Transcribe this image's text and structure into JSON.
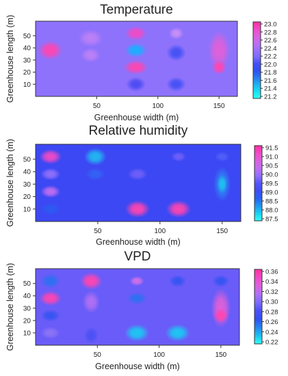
{
  "chart_data": [
    {
      "type": "heatmap",
      "title": "Temperature",
      "xlabel": "Greenhouse width (m)",
      "ylabel": "Greenhouse length (m)",
      "xlim": [
        0,
        165
      ],
      "ylim": [
        0,
        62
      ],
      "xticks": [
        50,
        100,
        150
      ],
      "yticks": [
        10,
        20,
        30,
        40,
        50
      ],
      "colorbar": {
        "ticks": [
          "23.0",
          "22.8",
          "22.6",
          "22.4",
          "22.2",
          "22.0",
          "21.8",
          "21.6",
          "21.4",
          "21.2"
        ],
        "colors": [
          "#ff2fa2",
          "#f04ac6",
          "#dc60e0",
          "#c06ef0",
          "#9d70fb",
          "#7c6cfd",
          "#4550f5",
          "#3050f0",
          "#2878f0",
          "#20b0f0",
          "#18e0f0",
          "#30fff8"
        ]
      },
      "background": "#8e72fc",
      "blobs": [
        {
          "x": 12,
          "y": 38,
          "rx": 10,
          "ry": 8,
          "color": "#ff45b0"
        },
        {
          "x": 45,
          "y": 48,
          "rx": 10,
          "ry": 7,
          "color": "#bd80f6"
        },
        {
          "x": 45,
          "y": 34,
          "rx": 8,
          "ry": 6,
          "color": "#bd80f6"
        },
        {
          "x": 82,
          "y": 52,
          "rx": 9,
          "ry": 6,
          "color": "#f04ac6"
        },
        {
          "x": 82,
          "y": 38,
          "rx": 9,
          "ry": 6,
          "color": "#18b0ff"
        },
        {
          "x": 82,
          "y": 24,
          "rx": 10,
          "ry": 6,
          "color": "#ff45b0"
        },
        {
          "x": 82,
          "y": 10,
          "rx": 8,
          "ry": 6,
          "color": "#4a4af2"
        },
        {
          "x": 115,
          "y": 52,
          "rx": 6,
          "ry": 5,
          "color": "#c890f6"
        },
        {
          "x": 115,
          "y": 36,
          "rx": 8,
          "ry": 7,
          "color": "#4250f4"
        },
        {
          "x": 115,
          "y": 10,
          "rx": 8,
          "ry": 6,
          "color": "#4250f4"
        },
        {
          "x": 150,
          "y": 38,
          "rx": 9,
          "ry": 16,
          "color": "#e060d8"
        },
        {
          "x": 150,
          "y": 24,
          "rx": 6,
          "ry": 6,
          "color": "#ff45b0"
        }
      ]
    },
    {
      "type": "heatmap",
      "title": "Relative humidity",
      "xlabel": "Greenhouse width (m)",
      "ylabel": "Greenhouse length (m)",
      "xlim": [
        0,
        165
      ],
      "ylim": [
        0,
        62
      ],
      "xticks": [
        50,
        100,
        150
      ],
      "yticks": [
        10,
        20,
        30,
        40,
        50
      ],
      "colorbar": {
        "ticks": [
          "91.5",
          "91.0",
          "90.5",
          "90.0",
          "89.5",
          "89.0",
          "88.5",
          "88.0",
          "87.5"
        ],
        "colors": [
          "#ff2fa2",
          "#f04ac6",
          "#dc60e0",
          "#c06ef0",
          "#9070fb",
          "#5555f8",
          "#3e4ef2",
          "#2860f0",
          "#2094f0",
          "#18d0f0",
          "#30fff8"
        ]
      },
      "background": "#3c48f3",
      "blobs": [
        {
          "x": 12,
          "y": 52,
          "rx": 9,
          "ry": 6,
          "color": "#f04ac6"
        },
        {
          "x": 12,
          "y": 38,
          "rx": 8,
          "ry": 5,
          "color": "#9070fb"
        },
        {
          "x": 12,
          "y": 24,
          "rx": 8,
          "ry": 5,
          "color": "#c06ef0"
        },
        {
          "x": 12,
          "y": 10,
          "rx": 8,
          "ry": 5,
          "color": "#2c5af2"
        },
        {
          "x": 48,
          "y": 52,
          "rx": 9,
          "ry": 7,
          "color": "#22b8f2"
        },
        {
          "x": 48,
          "y": 38,
          "rx": 8,
          "ry": 5,
          "color": "#3462f4"
        },
        {
          "x": 82,
          "y": 38,
          "rx": 8,
          "ry": 5,
          "color": "#7060f8"
        },
        {
          "x": 82,
          "y": 10,
          "rx": 10,
          "ry": 7,
          "color": "#ff45b0"
        },
        {
          "x": 115,
          "y": 52,
          "rx": 6,
          "ry": 4,
          "color": "#7060f8"
        },
        {
          "x": 115,
          "y": 10,
          "rx": 10,
          "ry": 7,
          "color": "#ff45b0"
        },
        {
          "x": 150,
          "y": 52,
          "rx": 6,
          "ry": 4,
          "color": "#5060f8"
        },
        {
          "x": 150,
          "y": 30,
          "rx": 7,
          "ry": 14,
          "color": "#2c8af2"
        },
        {
          "x": 150,
          "y": 30,
          "rx": 4,
          "ry": 7,
          "color": "#20c0f0"
        }
      ]
    },
    {
      "type": "heatmap",
      "title": "VPD",
      "xlabel": "Greenhouse width (m)",
      "ylabel": "Greenhouse length (m)",
      "xlim": [
        0,
        165
      ],
      "ylim": [
        0,
        62
      ],
      "xticks": [
        50,
        100,
        150
      ],
      "yticks": [
        10,
        20,
        30,
        40,
        50
      ],
      "colorbar": {
        "ticks": [
          "0.36",
          "0.34",
          "0.32",
          "0.30",
          "0.28",
          "0.26",
          "0.24",
          "0.22"
        ],
        "colors": [
          "#ff2fa2",
          "#f04ac6",
          "#dc60e0",
          "#b070f4",
          "#7a6cfc",
          "#4a50f5",
          "#3050f0",
          "#2484f0",
          "#1cc0f0",
          "#30fff8"
        ]
      },
      "background": "#6a5cf8",
      "blobs": [
        {
          "x": 12,
          "y": 52,
          "rx": 8,
          "ry": 6,
          "color": "#2c70f0"
        },
        {
          "x": 12,
          "y": 38,
          "rx": 9,
          "ry": 6,
          "color": "#ff45b0"
        },
        {
          "x": 12,
          "y": 24,
          "rx": 8,
          "ry": 5,
          "color": "#3454f2"
        },
        {
          "x": 12,
          "y": 10,
          "rx": 8,
          "ry": 5,
          "color": "#8c74f6"
        },
        {
          "x": 45,
          "y": 52,
          "rx": 9,
          "ry": 7,
          "color": "#ff45b0"
        },
        {
          "x": 45,
          "y": 35,
          "rx": 7,
          "ry": 9,
          "color": "#b070f4"
        },
        {
          "x": 45,
          "y": 8,
          "rx": 6,
          "ry": 7,
          "color": "#4a50f5"
        },
        {
          "x": 82,
          "y": 52,
          "rx": 6,
          "ry": 4,
          "color": "#d070e8"
        },
        {
          "x": 82,
          "y": 38,
          "rx": 8,
          "ry": 5,
          "color": "#2c70f0"
        },
        {
          "x": 82,
          "y": 10,
          "rx": 10,
          "ry": 7,
          "color": "#1cc8f2"
        },
        {
          "x": 115,
          "y": 52,
          "rx": 7,
          "ry": 5,
          "color": "#3454f2"
        },
        {
          "x": 115,
          "y": 10,
          "rx": 10,
          "ry": 7,
          "color": "#1cc8f2"
        },
        {
          "x": 150,
          "y": 52,
          "rx": 7,
          "ry": 5,
          "color": "#3454f2"
        },
        {
          "x": 150,
          "y": 30,
          "rx": 8,
          "ry": 16,
          "color": "#e060d8"
        },
        {
          "x": 150,
          "y": 24,
          "rx": 6,
          "ry": 6,
          "color": "#ff45b0"
        }
      ]
    }
  ]
}
